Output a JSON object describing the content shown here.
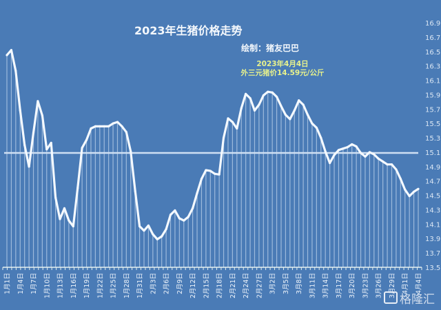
{
  "chart_data": {
    "type": "line",
    "title": "2023年生猪价格走势",
    "subtitle": "绘制：猪友巴巴",
    "annotation": [
      "2023年4月4日",
      "外三元猪价14.59元/公斤"
    ],
    "xlabel": "",
    "ylabel": "",
    "ylim": [
      13.5,
      16.9
    ],
    "yticks": [
      "16.9",
      "16.7",
      "16.5",
      "16.3",
      "16.1",
      "15.9",
      "15.7",
      "15.5",
      "15.3",
      "15.1",
      "14.9",
      "14.7",
      "14.5",
      "14.3",
      "14.1",
      "13.9",
      "13.7",
      "13.5"
    ],
    "grid": false,
    "reference_line": 15.09,
    "x": [
      "1月1日",
      "1月2日",
      "1月3日",
      "1月4日",
      "1月5日",
      "1月6日",
      "1月7日",
      "1月8日",
      "1月9日",
      "1月10日",
      "1月11日",
      "1月12日",
      "1月13日",
      "1月14日",
      "1月15日",
      "1月16日",
      "1月17日",
      "1月18日",
      "1月19日",
      "1月20日",
      "1月21日",
      "1月22日",
      "1月23日",
      "1月24日",
      "1月25日",
      "1月26日",
      "1月27日",
      "1月28日",
      "1月29日",
      "1月30日",
      "1月31日",
      "2月1日",
      "2月2日",
      "2月3日",
      "2月4日",
      "2月5日",
      "2月6日",
      "2月7日",
      "2月8日",
      "2月9日",
      "2月10日",
      "2月11日",
      "2月12日",
      "2月13日",
      "2月14日",
      "2月15日",
      "2月16日",
      "2月17日",
      "2月18日",
      "2月19日",
      "2月20日",
      "2月21日",
      "2月22日",
      "2月23日",
      "2月24日",
      "2月25日",
      "2月26日",
      "2月27日",
      "2月28日",
      "3月1日",
      "3月2日",
      "3月3日",
      "3月4日",
      "3月5日",
      "3月6日",
      "3月7日",
      "3月8日",
      "3月9日",
      "3月10日",
      "3月11日",
      "3月12日",
      "3月13日",
      "3月14日",
      "3月15日",
      "3月16日",
      "3月17日",
      "3月18日",
      "3月19日",
      "3月20日",
      "3月21日",
      "3月22日",
      "3月23日",
      "3月24日",
      "3月25日",
      "3月26日",
      "3月27日",
      "3月28日",
      "3月29日",
      "3月30日",
      "3月31日",
      "4月1日",
      "4月2日",
      "4月3日",
      "4月4日"
    ],
    "tick_every": 3,
    "series": [
      {
        "values": [
          16.45,
          16.52,
          16.23,
          15.68,
          15.2,
          14.9,
          15.37,
          15.81,
          15.61,
          15.14,
          15.23,
          14.47,
          14.17,
          14.32,
          14.15,
          14.07,
          14.6,
          15.16,
          15.27,
          15.43,
          15.46,
          15.46,
          15.46,
          15.46,
          15.5,
          15.52,
          15.46,
          15.38,
          15.11,
          14.56,
          14.07,
          14.01,
          14.08,
          13.96,
          13.89,
          13.93,
          14.03,
          14.23,
          14.29,
          14.18,
          14.15,
          14.2,
          14.32,
          14.53,
          14.73,
          14.85,
          14.84,
          14.8,
          14.79,
          15.3,
          15.57,
          15.52,
          15.43,
          15.71,
          15.91,
          15.85,
          15.68,
          15.76,
          15.89,
          15.94,
          15.93,
          15.87,
          15.74,
          15.62,
          15.56,
          15.68,
          15.82,
          15.76,
          15.62,
          15.5,
          15.44,
          15.3,
          15.11,
          14.95,
          15.06,
          15.13,
          15.15,
          15.17,
          15.21,
          15.18,
          15.09,
          15.04,
          15.1,
          15.07,
          15.01,
          14.97,
          14.93,
          14.93,
          14.86,
          14.73,
          14.58,
          14.49,
          14.55,
          14.59
        ]
      }
    ],
    "colors": {
      "background": "#4a7bb6",
      "line": "#f4f9ff",
      "reference": "#cfe0f3",
      "annotation": "#e8f28c"
    }
  },
  "watermark": "格隆汇"
}
